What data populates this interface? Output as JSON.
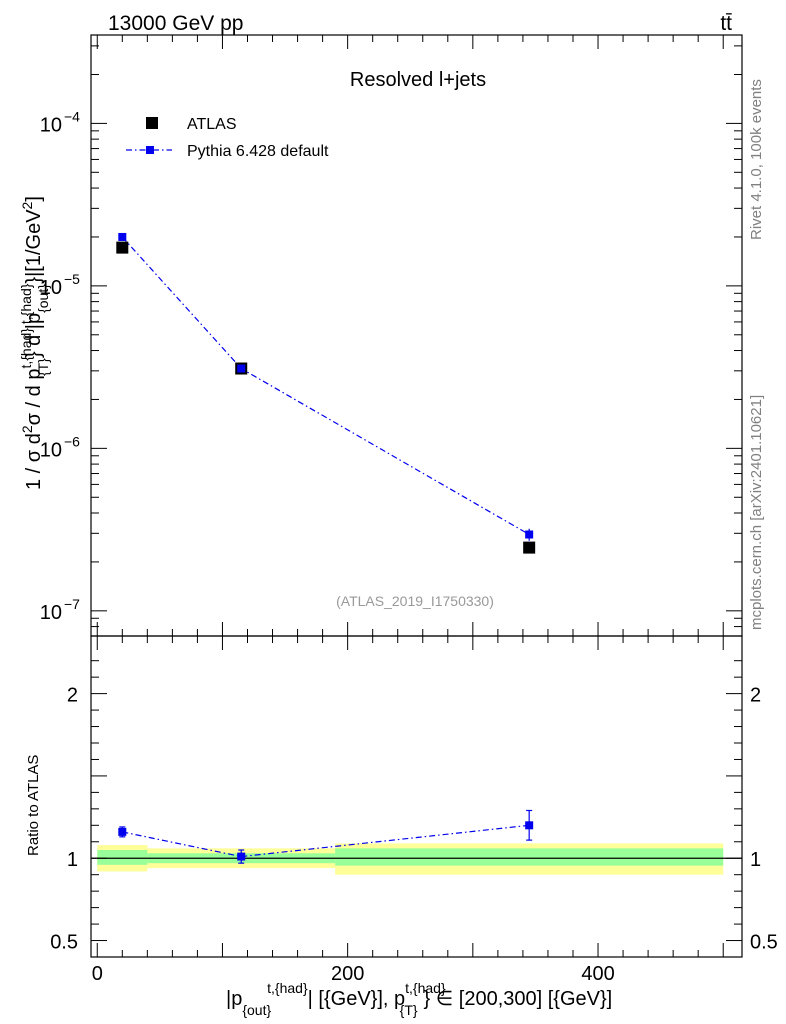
{
  "header": {
    "left": "13000 GeV pp",
    "right": "tt̄"
  },
  "side_labels": {
    "rivet": "Rivet 4.1.0,  100k events",
    "source": "mcplots.cern.ch [arXiv:2401.10621]"
  },
  "chart_data": [
    {
      "type": "line",
      "panel": "main",
      "title": "Resolved l+jets",
      "watermark": "(ATLAS_2019_I1750330)",
      "ylabel": "1 / σ d²σ / d p_{T}^{t,{had}} d |p_{out}^{t,{had}}| [1/GeV²]",
      "yscale": "log",
      "ylim": [
        7e-08,
        0.00035
      ],
      "xlim": [
        -5,
        515
      ],
      "yticks": [
        {
          "value": 1e-07,
          "base": "10",
          "exp": "−7"
        },
        {
          "value": 1e-06,
          "base": "10",
          "exp": "−6"
        },
        {
          "value": 1e-05,
          "base": "10",
          "exp": "−5"
        },
        {
          "value": 0.0001,
          "base": "10",
          "exp": "−4"
        }
      ],
      "legend": [
        {
          "name": "ATLAS",
          "marker": "square-black"
        },
        {
          "name": "Pythia 6.428 default",
          "marker": "square-blue-dashdot"
        }
      ],
      "series": [
        {
          "name": "ATLAS",
          "color": "#000000",
          "x": [
            20,
            115,
            345
          ],
          "y": [
            1.72e-05,
            3.1e-06,
            2.45e-07
          ]
        },
        {
          "name": "Pythia 6.428 default",
          "color": "#0000ee",
          "x": [
            20,
            115,
            345
          ],
          "y": [
            2e-05,
            3.1e-06,
            2.95e-07
          ],
          "yerr": [
            4e-07,
            8e-08,
            2.5e-08
          ]
        }
      ]
    },
    {
      "type": "line",
      "panel": "ratio",
      "ylabel": "Ratio to ATLAS",
      "ylim": [
        0.4,
        2.35
      ],
      "xlim": [
        -5,
        515
      ],
      "yticks": [
        {
          "value": 0.5,
          "label": "0.5"
        },
        {
          "value": 1,
          "label": "1"
        },
        {
          "value": 2,
          "label": "2"
        }
      ],
      "xticks": [
        {
          "value": 0,
          "label": "0"
        },
        {
          "value": 200,
          "label": "200"
        },
        {
          "value": 400,
          "label": "400"
        }
      ],
      "bands": [
        {
          "x0": 0,
          "x1": 40,
          "green": [
            0.96,
            1.05
          ],
          "yellow": [
            0.92,
            1.08
          ]
        },
        {
          "x0": 40,
          "x1": 190,
          "green": [
            0.97,
            1.03
          ],
          "yellow": [
            0.94,
            1.06
          ]
        },
        {
          "x0": 190,
          "x1": 500,
          "green": [
            0.955,
            1.06
          ],
          "yellow": [
            0.9,
            1.09
          ]
        }
      ],
      "series": [
        {
          "name": "Pythia 6.428 default",
          "color": "#0000ee",
          "x": [
            20,
            115,
            345
          ],
          "y": [
            1.16,
            1.01,
            1.2
          ],
          "yerr": [
            0.03,
            0.04,
            0.09
          ]
        }
      ]
    }
  ],
  "xlabel": {
    "p1": "|p",
    "s1": "{out}",
    "u1": "t,{had}",
    "p2": "| [{GeV}], p",
    "u2": "t,{had}",
    "s2": "{T}",
    "p3": "} ∈ [200,300] [{GeV}]"
  }
}
